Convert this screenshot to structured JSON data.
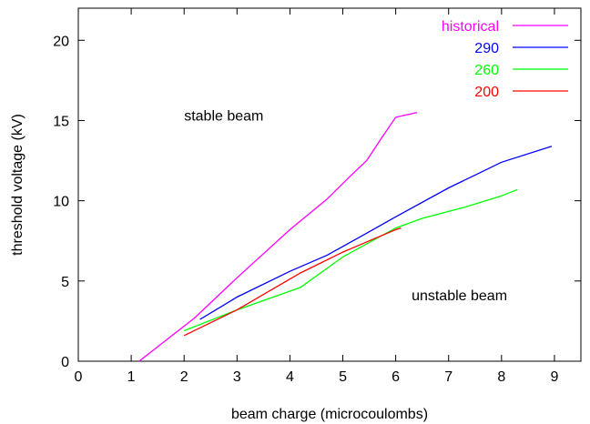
{
  "chart_data": {
    "type": "line",
    "title": "",
    "xlabel": "beam charge (microcoulombs)",
    "ylabel": "threshold voltage (kV)",
    "xlim": [
      0,
      9.5
    ],
    "ylim": [
      0,
      22
    ],
    "xticks": [
      0,
      1,
      2,
      3,
      4,
      5,
      6,
      7,
      8,
      9
    ],
    "yticks": [
      0,
      5,
      10,
      15,
      20
    ],
    "grid": false,
    "legend_position": "top-right",
    "annotations": [
      {
        "text": "stable beam",
        "x": 2.0,
        "y": 15.0
      },
      {
        "text": "unstable beam",
        "x": 6.3,
        "y": 3.8
      }
    ],
    "series": [
      {
        "name": "historical",
        "color": "#ff00ff",
        "x": [
          1.15,
          2.2,
          3.0,
          4.0,
          4.7,
          5.1,
          5.45,
          5.75,
          6.0,
          6.4
        ],
        "y": [
          0.0,
          2.7,
          5.2,
          8.2,
          10.1,
          11.4,
          12.5,
          14.0,
          15.2,
          15.5
        ]
      },
      {
        "name": "290",
        "color": "#0000ff",
        "x": [
          2.3,
          3.0,
          4.0,
          4.7,
          5.3,
          6.0,
          7.0,
          7.5,
          8.0,
          8.95
        ],
        "y": [
          2.6,
          4.0,
          5.6,
          6.6,
          7.7,
          9.0,
          10.8,
          11.6,
          12.4,
          13.4
        ]
      },
      {
        "name": "260",
        "color": "#00ff00",
        "x": [
          2.0,
          3.0,
          4.2,
          5.0,
          6.0,
          6.5,
          7.3,
          8.0,
          8.3
        ],
        "y": [
          1.9,
          3.2,
          4.6,
          6.5,
          8.3,
          8.9,
          9.6,
          10.3,
          10.7
        ]
      },
      {
        "name": "200",
        "color": "#ff0000",
        "x": [
          2.0,
          3.0,
          4.2,
          5.0,
          5.5,
          6.0,
          6.1
        ],
        "y": [
          1.6,
          3.2,
          5.5,
          6.8,
          7.5,
          8.2,
          8.3
        ]
      }
    ]
  }
}
